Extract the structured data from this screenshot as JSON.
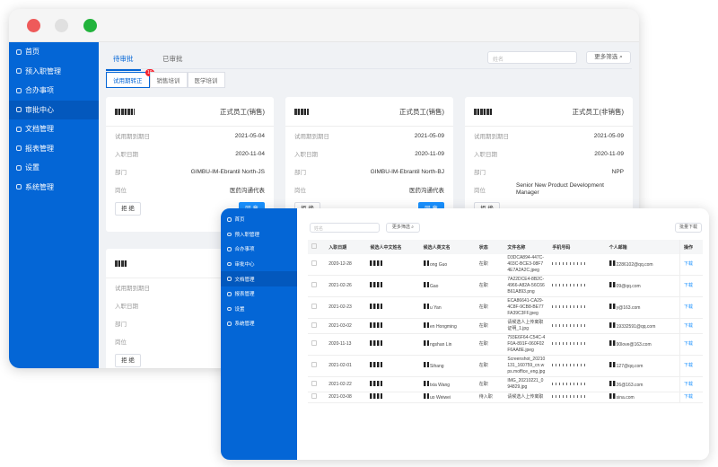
{
  "colors": {
    "brand": "#0466d6",
    "primary_button": "#1890ff",
    "badge": "#f5222d",
    "traffic": [
      "#ee5a5a",
      "#e0e0e0",
      "#22b33c"
    ]
  },
  "back": {
    "sidebar": [
      {
        "label": "首页",
        "icon": "home-icon"
      },
      {
        "label": "预入职管理",
        "icon": "user-icon"
      },
      {
        "label": "合办事项",
        "icon": "clipboard-icon"
      },
      {
        "label": "审批中心",
        "icon": "approval-icon",
        "active": true
      },
      {
        "label": "文档管理",
        "icon": "folder-icon"
      },
      {
        "label": "报表管理",
        "icon": "chart-icon"
      },
      {
        "label": "设置",
        "icon": "gear-icon"
      },
      {
        "label": "系统管理",
        "icon": "system-icon"
      }
    ],
    "tabs": [
      "待审批",
      "已审批"
    ],
    "search_placeholder": "姓名",
    "more_filter": "更多筛选",
    "subtabs": [
      "试用期转正",
      "销售培训",
      "医学培训"
    ],
    "badge": "10",
    "labels": {
      "probation_end": "试用期到期日",
      "join_date": "入职日期",
      "dept": "部门",
      "position": "岗位",
      "reject": "拒 绝",
      "agree": "同 意"
    },
    "cards": [
      {
        "type": "正式员工(销售)",
        "probation_end": "2021-05-04",
        "join_date": "2020-11-04",
        "dept": "GIMBU-IM-Ebrantil North-JS",
        "position": "医药沟通代表"
      },
      {
        "type": "正式员工(销售)",
        "probation_end": "2021-05-09",
        "join_date": "2020-11-09",
        "dept": "GIMBU-IM-Ebrantil North-BJ",
        "position": "医药沟通代表"
      },
      {
        "type": "正式员工(非销售)",
        "probation_end": "2021-05-09",
        "join_date": "2020-11-09",
        "dept": "NPP",
        "position": "Senior New Product Development Manager"
      },
      {
        "type": "",
        "probation_end": "",
        "join_date": "",
        "dept": "",
        "position": ""
      }
    ]
  },
  "front": {
    "sidebar": [
      {
        "label": "首页"
      },
      {
        "label": "预入职管理"
      },
      {
        "label": "合办事项"
      },
      {
        "label": "审批中心"
      },
      {
        "label": "文档管理",
        "active": true
      },
      {
        "label": "报表管理"
      },
      {
        "label": "设置"
      },
      {
        "label": "系统管理"
      }
    ],
    "search_placeholder": "姓名",
    "more_filter": "更多筛选",
    "bulk_download": "批量下载",
    "columns": [
      "入职日期",
      "候选人中文姓名",
      "候选人英文名",
      "状态",
      "文件名称",
      "手机号码",
      "个人邮箱",
      "操作"
    ],
    "rows": [
      {
        "date": "2020-12-28",
        "en": "ong Guo",
        "status": "在职",
        "file": "D3DCA894-447C-403C-BCE3-08F74E7A2A2C.jpeg",
        "email": "2286102@qq.com",
        "op": "下载"
      },
      {
        "date": "2021-02-26",
        "en": "Gao",
        "status": "在职",
        "file": "7A22DCE4-8B2C-4966-A82A-56C66B61A893.png",
        "email": "09@qq.com",
        "op": "下载"
      },
      {
        "date": "2021-02-23",
        "en": "u Yan",
        "status": "在职",
        "file": "ECA86641-CA29-4C8F-9CB8-BE77FA39C3FF.jpeg",
        "email": "y@163.com",
        "op": "下载"
      },
      {
        "date": "2021-03-02",
        "en": "en Hongming",
        "status": "在职",
        "file": "请候选人上传离职证明_1.jpg",
        "email": "19332591@qq.com",
        "op": "下载"
      },
      {
        "date": "2020-11-13",
        "en": "ngshan Lin",
        "status": "在职",
        "file": "793E6F64-C54C-4F0A-891F-060F02F6AA8E.jpeg",
        "email": "90love@163.com",
        "op": "下载"
      },
      {
        "date": "2021-02-01",
        "en": "Sihang",
        "status": "在职",
        "file": "Screenshot_20210131_160759_cn.wps.moffice_eng.jpg",
        "email": "127@qq.com",
        "op": "下载"
      },
      {
        "date": "2021-02-22",
        "en": "txia Wang",
        "status": "在职",
        "file": "IMG_20210221_094829.jpg",
        "email": "26@163.com",
        "op": "下载"
      },
      {
        "date": "2021-03-08",
        "en": "uo Weiwei",
        "status": "待入职",
        "file": "请候选人上传离职",
        "email": "sina.com",
        "op": "下载"
      }
    ]
  }
}
